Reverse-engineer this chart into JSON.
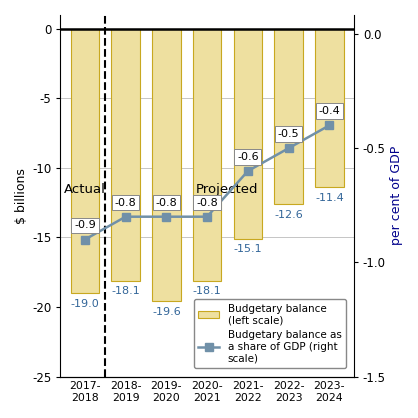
{
  "categories": [
    "2017-\n2018",
    "2018-\n2019",
    "2019-\n2020",
    "2020-\n2021",
    "2021-\n2022",
    "2022-\n2023",
    "2023-\n2024"
  ],
  "bar_values": [
    -19.0,
    -18.1,
    -19.6,
    -18.1,
    -15.1,
    -12.6,
    -11.4
  ],
  "gdp_values": [
    -0.9,
    -0.8,
    -0.8,
    -0.8,
    -0.6,
    -0.5,
    -0.4
  ],
  "bar_labels": [
    "-19.0",
    "-18.1",
    "-19.6",
    "-18.1",
    "-15.1",
    "-12.6",
    "-11.4"
  ],
  "gdp_labels": [
    "-0.9",
    "-0.8",
    "-0.8",
    "-0.8",
    "-0.6",
    "-0.5",
    "-0.4"
  ],
  "bar_color": "#EEE0A0",
  "bar_edge_color": "#C8A820",
  "line_color": "#7090A8",
  "marker_color": "#7090A8",
  "left_ylabel": "$ billions",
  "right_ylabel": "per cent of GDP",
  "ylim_left": [
    -25,
    1
  ],
  "ylim_right": [
    -1.5,
    0.08333
  ],
  "yticks_left": [
    0,
    -5,
    -10,
    -15,
    -20,
    -25
  ],
  "ytick_labels_left": [
    "0",
    "-5",
    "-10",
    "-15",
    "-20",
    "-25"
  ],
  "yticks_right": [
    0.0,
    -0.5,
    -1.0,
    -1.5
  ],
  "ytick_labels_right": [
    "0.0",
    "-0.5",
    "-1.0",
    "-1.5"
  ],
  "actual_label": "Actual",
  "projected_label": "Projected",
  "legend_bar_label": "Budgetary balance\n(left scale)",
  "legend_line_label": "Budgetary balance as\na share of GDP (right\nscale)",
  "background_color": "#ffffff",
  "bar_label_color": "#336699",
  "grid_color": "#bbbbbb",
  "right_ylabel_color": "#00008B"
}
